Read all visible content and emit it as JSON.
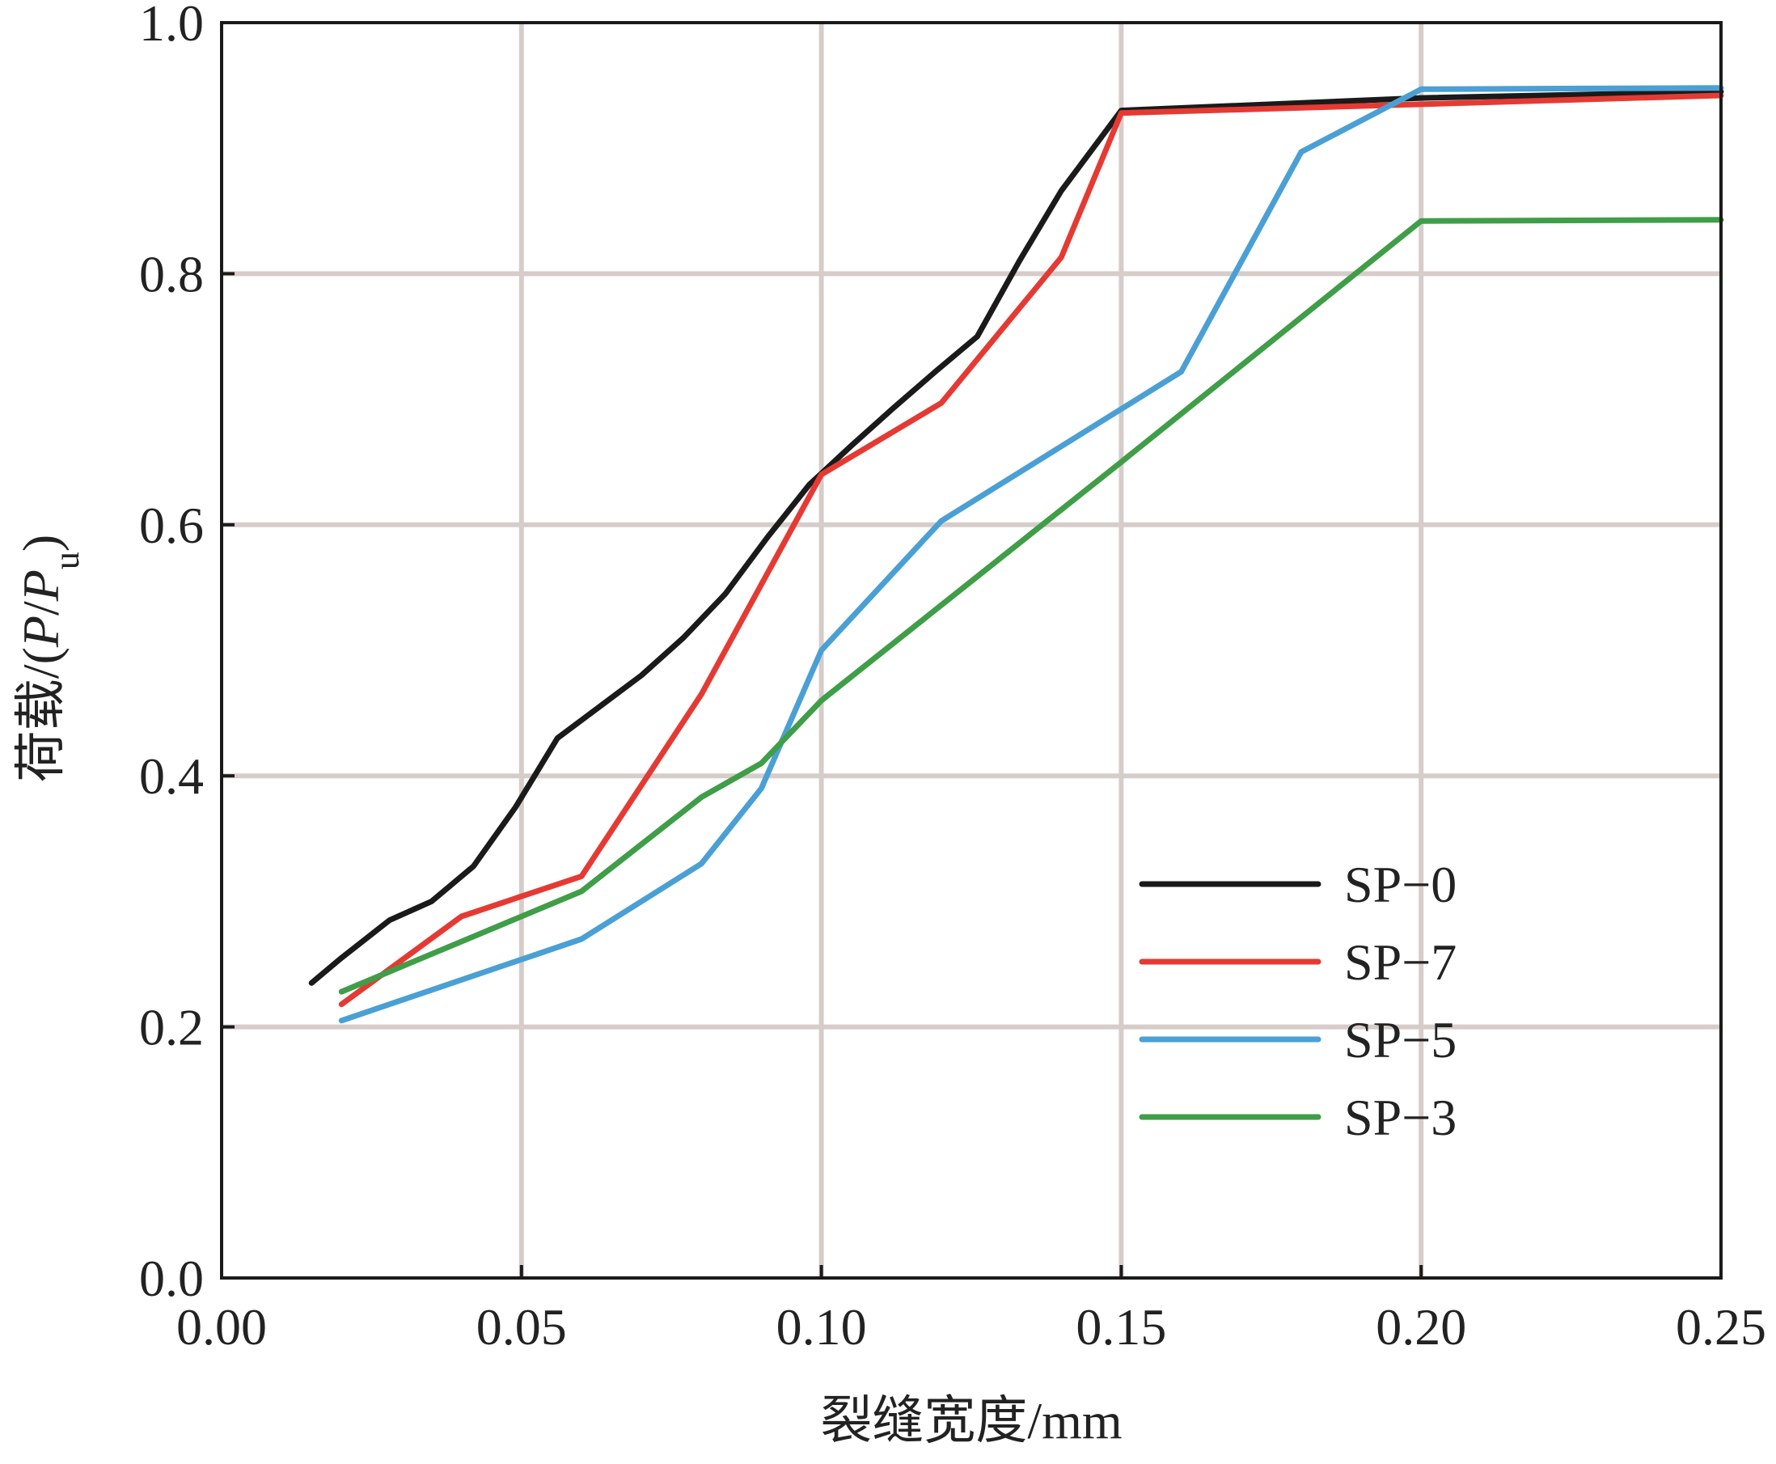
{
  "chart_data": {
    "type": "line",
    "xlabel": "裂缝宽度/mm",
    "ylabel": {
      "prefix": "荷载/(",
      "p1": "P",
      "slash": "/",
      "p2": "P",
      "sub": "u",
      "suffix": ")"
    },
    "xlim": [
      0.0,
      0.25
    ],
    "ylim": [
      0.0,
      1.0
    ],
    "xticks": [
      "0.00",
      "0.05",
      "0.10",
      "0.15",
      "0.20",
      "0.25"
    ],
    "yticks": [
      "0.0",
      "0.2",
      "0.4",
      "0.6",
      "0.8",
      "1.0"
    ],
    "grid": true,
    "legend_position": "bottom-right",
    "series": [
      {
        "name": "SP−0",
        "color": "#1a1a1a",
        "x": [
          0.015,
          0.02,
          0.028,
          0.035,
          0.042,
          0.049,
          0.056,
          0.063,
          0.07,
          0.077,
          0.084,
          0.091,
          0.098,
          0.105,
          0.112,
          0.119,
          0.126,
          0.133,
          0.14,
          0.15,
          0.2,
          0.25
        ],
        "y": [
          0.235,
          0.255,
          0.285,
          0.3,
          0.328,
          0.375,
          0.43,
          0.455,
          0.48,
          0.51,
          0.545,
          0.59,
          0.632,
          0.663,
          0.693,
          0.722,
          0.75,
          0.81,
          0.866,
          0.93,
          0.94,
          0.945
        ]
      },
      {
        "name": "SP−7",
        "color": "#e53a33",
        "x": [
          0.02,
          0.04,
          0.06,
          0.08,
          0.1,
          0.12,
          0.14,
          0.15,
          0.2,
          0.25
        ],
        "y": [
          0.218,
          0.288,
          0.32,
          0.465,
          0.64,
          0.697,
          0.813,
          0.928,
          0.935,
          0.942
        ]
      },
      {
        "name": "SP−5",
        "color": "#4aa0d5",
        "x": [
          0.02,
          0.06,
          0.08,
          0.09,
          0.1,
          0.12,
          0.16,
          0.18,
          0.2,
          0.25
        ],
        "y": [
          0.205,
          0.27,
          0.33,
          0.39,
          0.5,
          0.603,
          0.722,
          0.897,
          0.947,
          0.948
        ]
      },
      {
        "name": "SP−3",
        "color": "#3f9e47",
        "x": [
          0.02,
          0.06,
          0.08,
          0.09,
          0.1,
          0.15,
          0.2,
          0.25
        ],
        "y": [
          0.228,
          0.308,
          0.383,
          0.41,
          0.46,
          0.65,
          0.842,
          0.843
        ]
      }
    ]
  }
}
